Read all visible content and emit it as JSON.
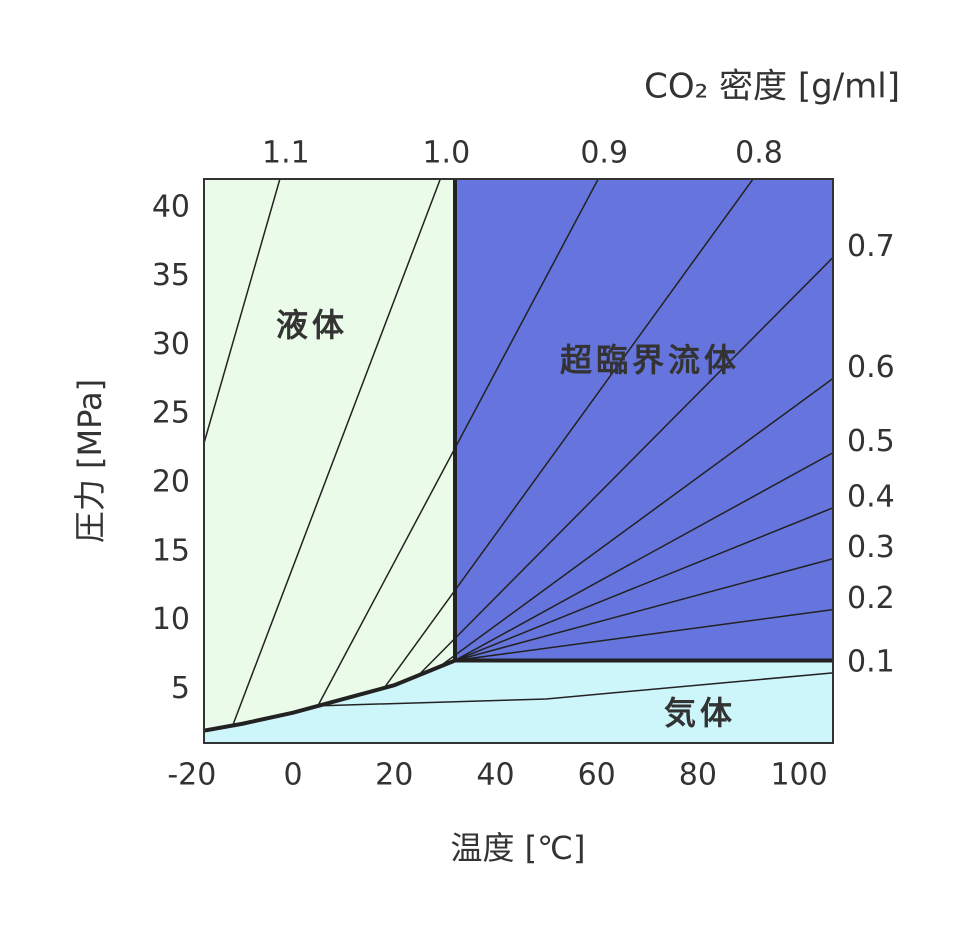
{
  "chart_data": {
    "type": "line",
    "title": "CO₂ 密度 [g/ml]",
    "xlabel": "温度 [℃]",
    "ylabel": "圧力 [MPa]",
    "xlim": [
      -17.6,
      106.7
    ],
    "ylim": [
      1.1,
      42.1
    ],
    "xticks": [
      -20,
      0,
      20,
      40,
      60,
      80,
      100
    ],
    "yticks": [
      5,
      10,
      15,
      20,
      25,
      30,
      35,
      40
    ],
    "regions": [
      {
        "label": "液体",
        "color": "#ebfbe9"
      },
      {
        "label": "超臨界流体",
        "color": "#6674dd"
      },
      {
        "label": "気体",
        "color": "#cdf6fb"
      }
    ],
    "critical_point": {
      "x": 32.0,
      "y": 7.1
    },
    "vapor_curve": {
      "x": [
        -17.6,
        -10,
        0,
        10,
        20,
        32.0
      ],
      "y": [
        2.0,
        2.5,
        3.3,
        4.3,
        5.3,
        7.1
      ]
    },
    "line_color": "#222222",
    "isolines": [
      {
        "label": "1.1",
        "x": [
          -17.6,
          -2.6
        ],
        "y": [
          22.9,
          42.1
        ]
      },
      {
        "label": "1.0",
        "x": [
          -11.9,
          29.1
        ],
        "y": [
          2.4,
          42.1
        ]
      },
      {
        "label": "0.9",
        "x": [
          4.9,
          60.3
        ],
        "y": [
          3.8,
          42.1
        ]
      },
      {
        "label": "0.8",
        "x": [
          18.2,
          90.9
        ],
        "y": [
          5.2,
          42.1
        ]
      },
      {
        "label": "0.7",
        "x": [
          24.7,
          106.7
        ],
        "y": [
          6.0,
          36.4
        ]
      },
      {
        "label": "0.6",
        "x": [
          29.1,
          106.7
        ],
        "y": [
          6.7,
          27.6
        ]
      },
      {
        "label": "0.5",
        "x": [
          32.0,
          106.7
        ],
        "y": [
          7.1,
          22.2
        ]
      },
      {
        "label": "0.4",
        "x": [
          32.0,
          106.7
        ],
        "y": [
          7.1,
          18.2
        ]
      },
      {
        "label": "0.3",
        "x": [
          32.0,
          106.7
        ],
        "y": [
          7.1,
          14.5
        ]
      },
      {
        "label": "0.2",
        "x": [
          32.0,
          106.7
        ],
        "y": [
          7.1,
          10.8
        ]
      },
      {
        "label": "0.1",
        "x": [
          4.9,
          50,
          106.7
        ],
        "y": [
          3.8,
          4.3,
          6.2
        ]
      }
    ]
  }
}
